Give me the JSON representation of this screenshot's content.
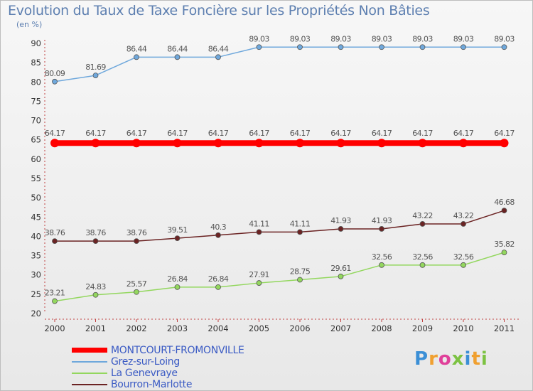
{
  "chart_data": {
    "type": "line",
    "title": "Evolution du Taux de Taxe Foncière sur les Propriétés Non Bâties",
    "unit_label": "(en %)",
    "x": [
      "2000",
      "2001",
      "2002",
      "2003",
      "2004",
      "2005",
      "2006",
      "2007",
      "2008",
      "2009",
      "2010",
      "2011"
    ],
    "yticks": [
      "20",
      "25",
      "30",
      "35",
      "40",
      "45",
      "50",
      "55",
      "60",
      "65",
      "70",
      "75",
      "80",
      "85",
      "90"
    ],
    "ylim": [
      20,
      90
    ],
    "grid": false,
    "legend_position": "bottom-left",
    "series": [
      {
        "name": "MONTCOURT-FROMONVILLE",
        "color": "#ff0000",
        "values": [
          64.17,
          64.17,
          64.17,
          64.17,
          64.17,
          64.17,
          64.17,
          64.17,
          64.17,
          64.17,
          64.17,
          64.17
        ],
        "labels": [
          "64.17",
          "64.17",
          "64.17",
          "64.17",
          "64.17",
          "64.17",
          "64.17",
          "64.17",
          "64.17",
          "64.17",
          "64.17",
          "64.17"
        ]
      },
      {
        "name": "Grez-sur-Loing",
        "color": "#6fa8dc",
        "values": [
          80.09,
          81.69,
          86.44,
          86.44,
          86.44,
          89.03,
          89.03,
          89.03,
          89.03,
          89.03,
          89.03,
          89.03
        ],
        "labels": [
          "80.09",
          "81.69",
          "86.44",
          "86.44",
          "86.44",
          "89.03",
          "89.03",
          "89.03",
          "89.03",
          "89.03",
          "89.03",
          "89.03"
        ]
      },
      {
        "name": "La Genevraye",
        "color": "#93d75e",
        "values": [
          23.21,
          24.83,
          25.57,
          26.84,
          26.84,
          27.91,
          28.75,
          29.61,
          32.56,
          32.56,
          32.56,
          35.82
        ],
        "labels": [
          "23.21",
          "24.83",
          "25.57",
          "26.84",
          "26.84",
          "27.91",
          "28.75",
          "29.61",
          "32.56",
          "32.56",
          "32.56",
          "35.82"
        ]
      },
      {
        "name": "Bourron-Marlotte",
        "color": "#6b2323",
        "values": [
          38.76,
          38.76,
          38.76,
          39.51,
          40.3,
          41.11,
          41.11,
          41.93,
          41.93,
          43.22,
          43.22,
          46.68
        ],
        "labels": [
          "38.76",
          "38.76",
          "38.76",
          "39.51",
          "40.3",
          "41.11",
          "41.11",
          "41.93",
          "41.93",
          "43.22",
          "43.22",
          "46.68"
        ]
      }
    ]
  },
  "logo": {
    "text": "Proxiti",
    "colors": [
      "#3b8fd6",
      "#f0a030",
      "#e0409a",
      "#7cc242",
      "#3b8fd6",
      "#f0a030",
      "#7cc242"
    ]
  }
}
